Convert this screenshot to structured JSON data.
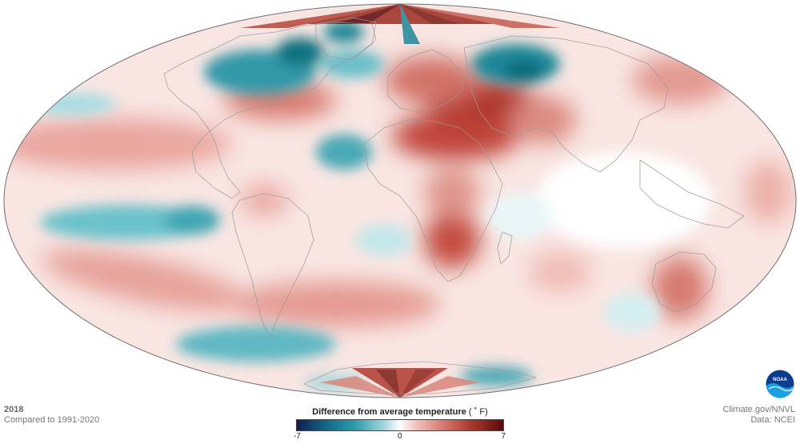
{
  "map": {
    "projection": "Mollweide",
    "colors": {
      "warm": "#c0392b",
      "cool": "#158a9a",
      "neutral": "#ffffff",
      "coastline": "#9a9a9a"
    }
  },
  "corner_left": {
    "year": "2018",
    "baseline": "Compared to 1991-2020"
  },
  "corner_right": {
    "source": "Climate.gov/NNVL",
    "data": "Data: NCEI"
  },
  "legend": {
    "title": "Difference from average temperature",
    "unit": "( ˚ F)",
    "min": "-7",
    "mid": "0",
    "max": "7",
    "gradient": [
      "#0c1e4f",
      "#136b8e",
      "#2b9cab",
      "#9fd6dc",
      "#ffffff",
      "#f2c1bd",
      "#d97d73",
      "#b0392e",
      "#5c0a0a"
    ]
  },
  "logo": {
    "label": "NOAA",
    "icon": "noaa-logo-icon"
  }
}
